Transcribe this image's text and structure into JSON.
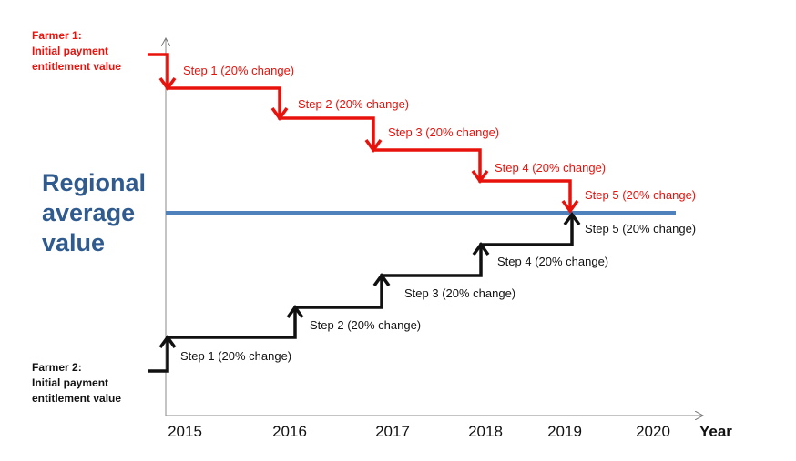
{
  "farmer1": {
    "lines": [
      "Farmer 1:",
      "Initial payment",
      "entitlement value"
    ],
    "color": "#e8120c"
  },
  "farmer2": {
    "lines": [
      "Farmer 2:",
      "Initial payment",
      "entitlement value"
    ],
    "color": "#111111"
  },
  "regional": {
    "lines": [
      "Regional",
      "average",
      "value"
    ],
    "color": "#2f5b8f",
    "line_color": "#4f81bd"
  },
  "red_steps": [
    "Step 1 (20% change)",
    "Step 2 (20% change)",
    "Step 3 (20% change)",
    "Step 4 (20% change)",
    "Step 5 (20% change)"
  ],
  "black_steps": [
    "Step 1 (20% change)",
    "Step 2 (20% change)",
    "Step 3 (20% change)",
    "Step 4 (20% change)",
    "Step 5 (20% change)"
  ],
  "x_axis": {
    "years": [
      "2015",
      "2016",
      "2017",
      "2018",
      "2019",
      "2020"
    ],
    "title": "Year"
  }
}
